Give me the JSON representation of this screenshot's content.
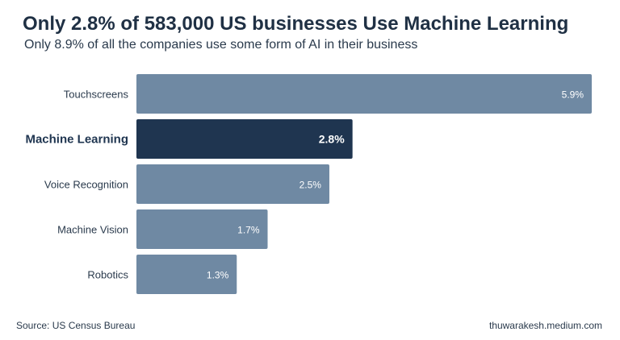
{
  "chart_data": {
    "type": "bar",
    "orientation": "horizontal",
    "title": "Only 2.8% of 583,000 US businesses Use Machine Learning",
    "subtitle": "Only 8.9% of all the companies use some form of AI in their business",
    "categories": [
      "Touchscreens",
      "Machine Learning",
      "Voice Recognition",
      "Machine Vision",
      "Robotics"
    ],
    "values": [
      5.9,
      2.8,
      2.5,
      1.7,
      1.3
    ],
    "value_labels": [
      "5.9%",
      "2.8%",
      "2.5%",
      "1.7%",
      "1.3%"
    ],
    "highlight_category": "Machine Learning",
    "xlim": [
      0,
      5.9
    ],
    "grid": false,
    "colors": {
      "bar": "#6f89a3",
      "highlight": "#1f3550",
      "label": "#2a3a4c",
      "value_label": "#ffffff"
    }
  },
  "footer": {
    "source": "Source: US Census Bureau",
    "credit": "thuwarakesh.medium.com"
  }
}
